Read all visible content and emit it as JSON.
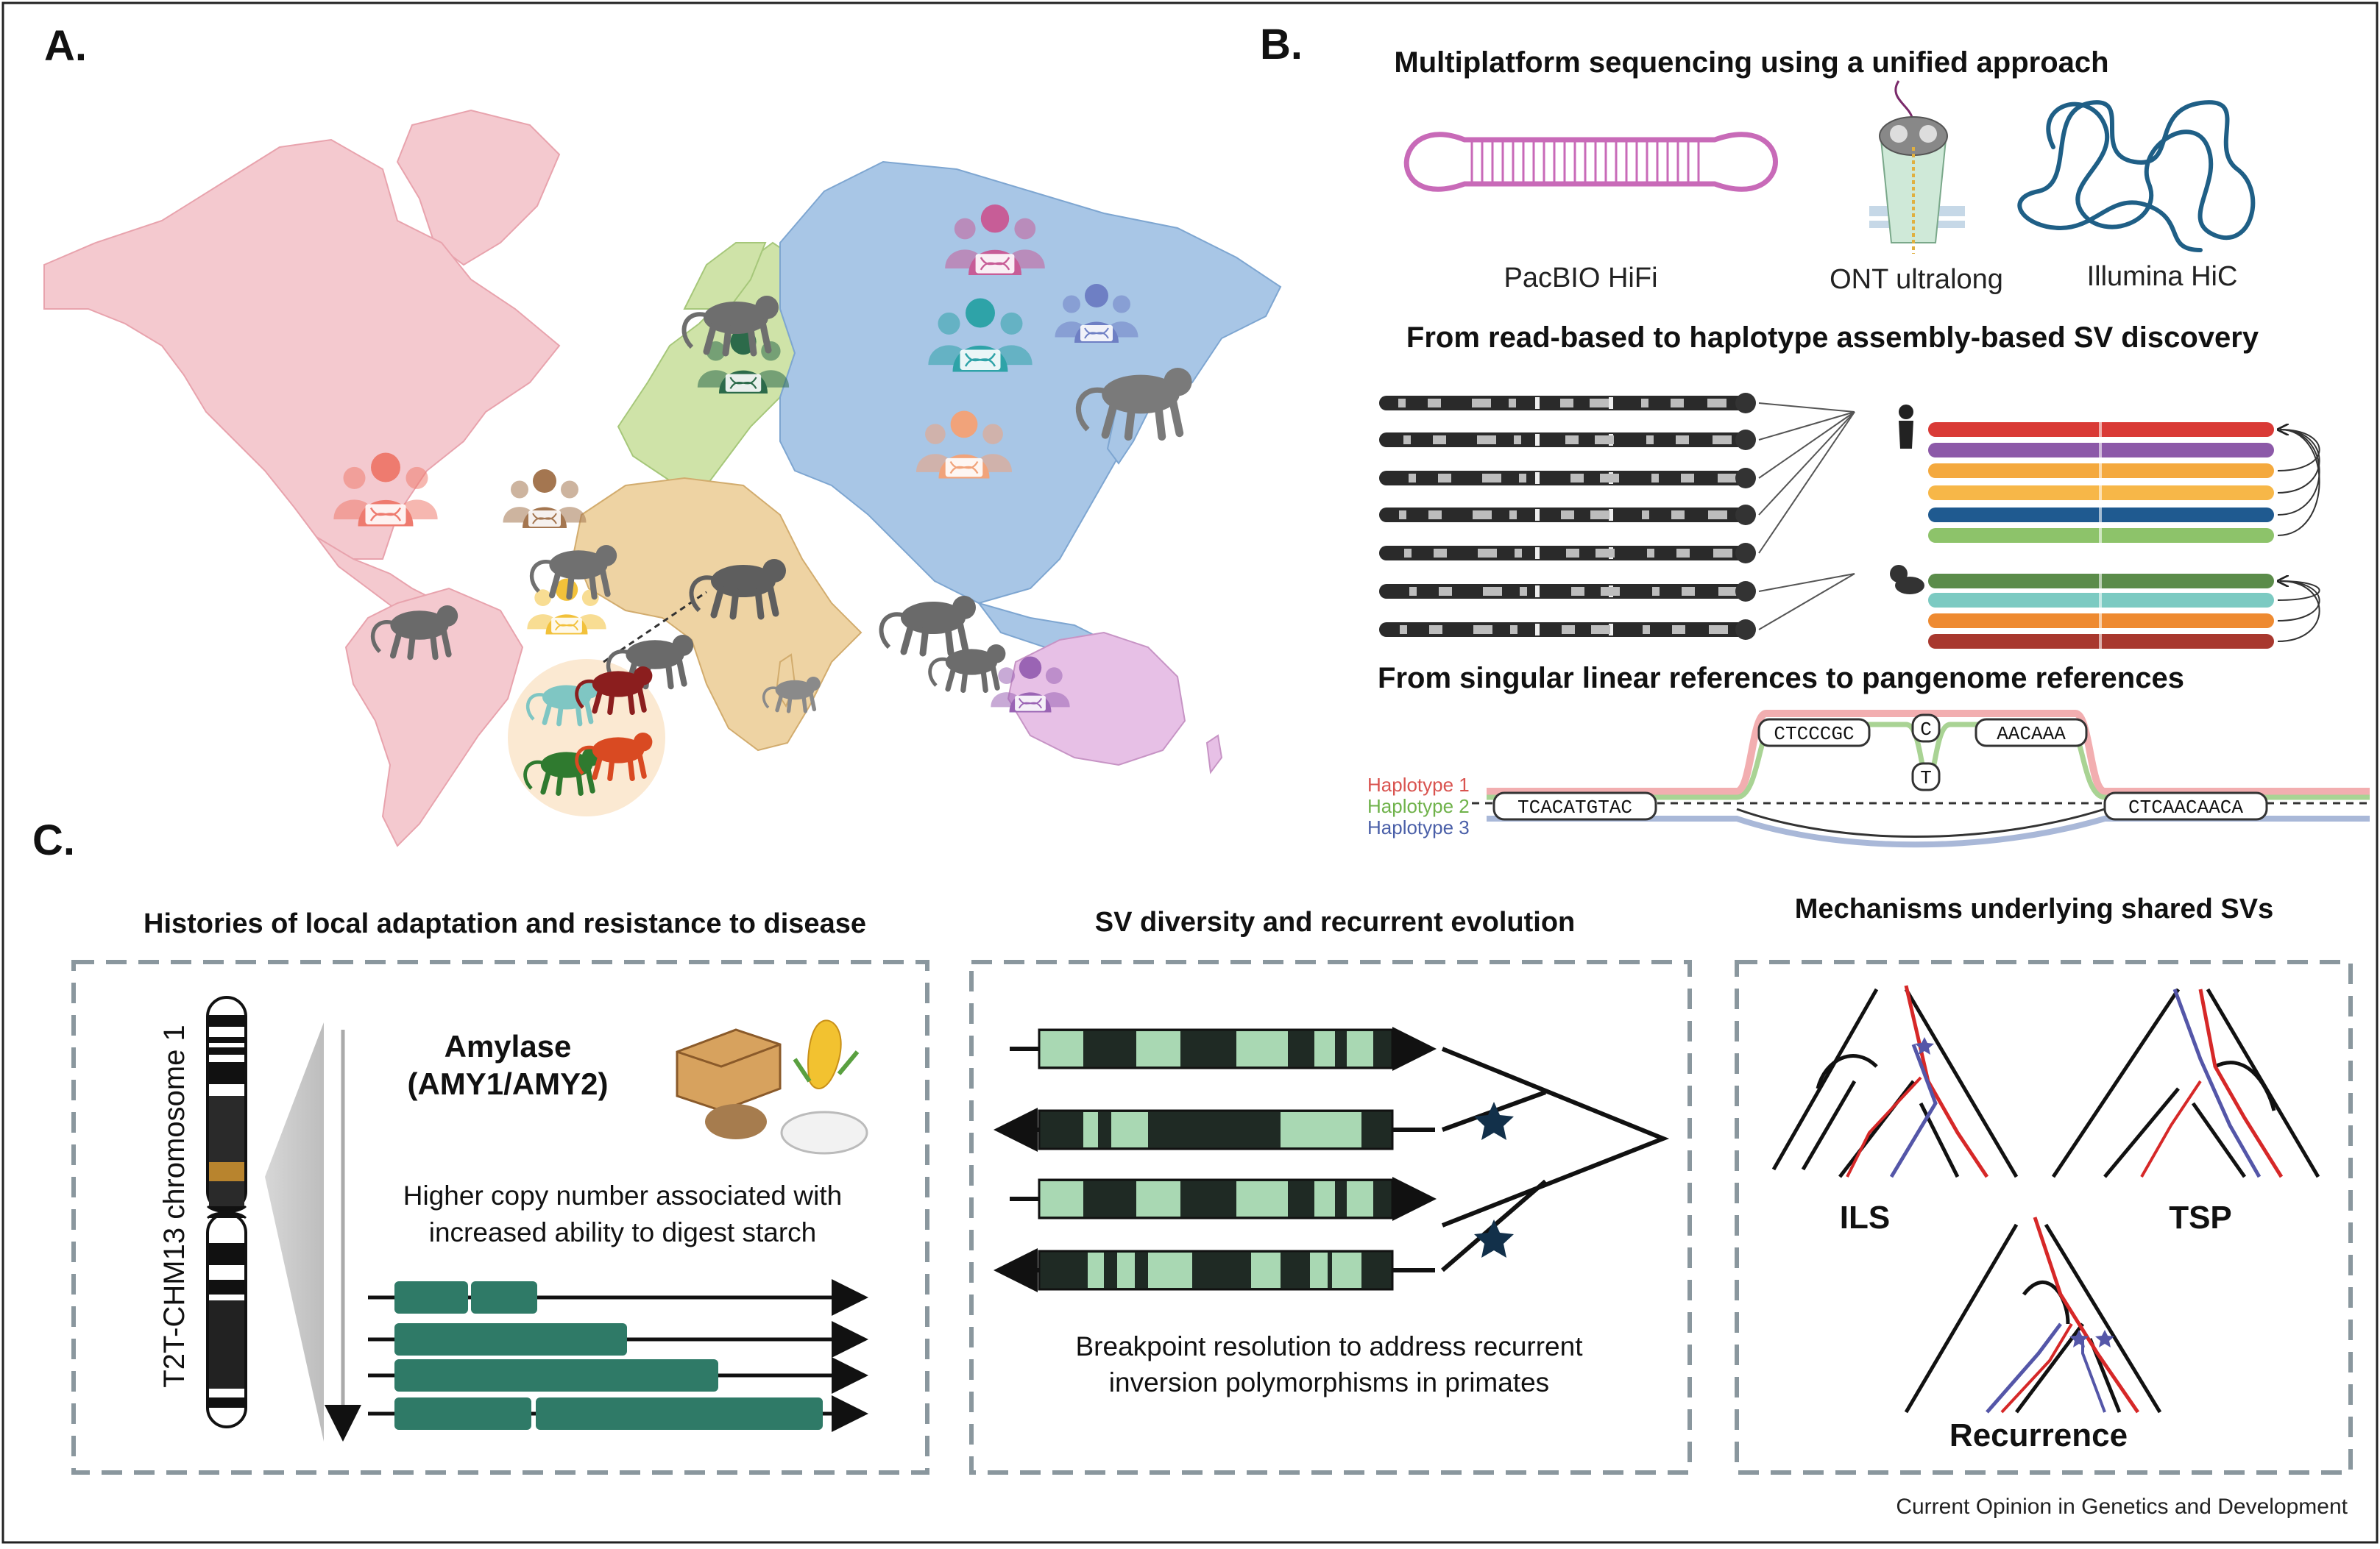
{
  "panels": {
    "a": {
      "letter": "A."
    },
    "b": {
      "letter": "B.",
      "heading1": "Multiplatform sequencing using a unified approach",
      "tech": [
        "PacBIO HiFi",
        "ONT ultralong",
        "Illumina HiC"
      ],
      "heading2": "From read-based to haplotype assembly-based SV discovery",
      "heading3": "From singular linear references to pangenome references",
      "haplotypes": [
        "Haplotype 1",
        "Haplotype 2",
        "Haplotype 3"
      ],
      "sequences": [
        "TCACATGTAC",
        "CTCCCGC",
        "C",
        "T",
        "AACAAA",
        "CTCAACAACA"
      ]
    },
    "c": {
      "letter": "C.",
      "sub1": {
        "title": "Histories of local adaptation and resistance to disease",
        "chromosome_label": "T2T-CHM13 chromosome 1",
        "gene_line1": "Amylase",
        "gene_line2": "(AMY1/AMY2)",
        "desc_line1": "Higher copy number associated with",
        "desc_line2": "increased ability to digest starch"
      },
      "sub2": {
        "title": "SV diversity and recurrent evolution",
        "desc_line1": "Breakpoint resolution to address recurrent",
        "desc_line2": "inversion polymorphisms in primates"
      },
      "sub3": {
        "title": "Mechanisms underlying shared SVs",
        "labels": [
          "ILS",
          "TSP",
          "Recurrence"
        ]
      }
    }
  },
  "footer": "Current Opinion in Genetics and Development",
  "colors": {
    "americas": "#f4c9cf",
    "europe": "#cfe3a8",
    "asia": "#a8c6e6",
    "africa": "#eed3a3",
    "oceania": "#e7c0e6",
    "pacbio": "#c86ab8",
    "hic": "#1f5f86",
    "gene_green": "#2f7a67",
    "sv_green": "#a9d8b3",
    "red_line": "#d62828",
    "blue_line": "#5456a8",
    "dash_border": "#8a979e",
    "track_colors": [
      "#d93a36",
      "#8c59a8",
      "#f4a93e",
      "#f7b748",
      "#1f5a90",
      "#8dc36a",
      "#5b8c4a",
      "#7ccac2",
      "#ee8a31",
      "#a8382e"
    ]
  }
}
